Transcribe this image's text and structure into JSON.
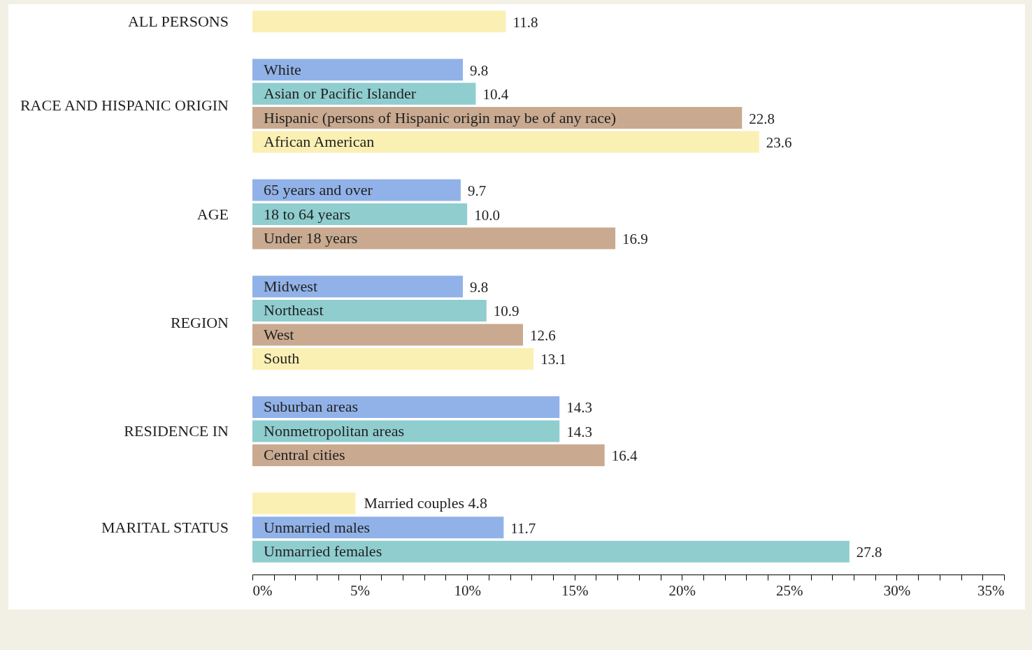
{
  "chart_data": {
    "type": "bar",
    "orientation": "horizontal",
    "value_labels": [
      "11.8",
      null,
      "9.8",
      "10.4",
      "22.8",
      "23.6",
      null,
      "9.7",
      "10.0",
      "16.9",
      null,
      "9.8",
      "10.9",
      "12.6",
      "13.1",
      null,
      "14.3",
      "14.3",
      "16.4",
      null,
      "4.8",
      "11.7",
      "27.8"
    ],
    "categories": [
      null,
      null,
      "White",
      "Asian or Pacific Islander",
      "Hispanic (persons of Hispanic origin may be of any race)",
      "African American",
      null,
      "65 years and over",
      "18 to 64 years",
      "Under 18 years",
      null,
      "Midwest",
      "Northeast",
      "West",
      "South",
      null,
      "Suburban areas",
      "Nonmetropolitan areas",
      "Central cities",
      null,
      "Married couples",
      "Unmarried males",
      "Unmarried females"
    ],
    "values": [
      11.8,
      null,
      9.8,
      10.4,
      22.8,
      23.6,
      null,
      9.7,
      10.0,
      16.9,
      null,
      9.8,
      10.9,
      12.6,
      13.1,
      null,
      14.3,
      14.3,
      16.4,
      null,
      4.8,
      11.7,
      27.8
    ],
    "colors": [
      "#fbf0b4",
      null,
      "#91b2e8",
      "#8fcdcf",
      "#c9aa90",
      "#fbf0b4",
      null,
      "#91b2e8",
      "#8fcdcf",
      "#c9aa90",
      null,
      "#91b2e8",
      "#8fcdcf",
      "#c9aa90",
      "#fbf0b4",
      null,
      "#91b2e8",
      "#8fcdcf",
      "#c9aa90",
      null,
      "#fbf0b4",
      "#91b2e8",
      "#8fcdcf"
    ],
    "annotations": [
      "ALL PERSONS",
      "RACE AND HISPANIC ORIGIN",
      "AGE",
      "REGION",
      "RESIDENCE IN",
      "MARITAL STATUS"
    ],
    "xlim": [
      0,
      35
    ],
    "xticks": [
      {
        "value": 0,
        "label": "0%"
      },
      {
        "value": 1,
        "label": null
      },
      {
        "value": 2,
        "label": null
      },
      {
        "value": 3,
        "label": null
      },
      {
        "value": 4,
        "label": null
      },
      {
        "value": 5,
        "label": "5%"
      },
      {
        "value": 6,
        "label": null
      },
      {
        "value": 7,
        "label": null
      },
      {
        "value": 8,
        "label": null
      },
      {
        "value": 9,
        "label": null
      },
      {
        "value": 10,
        "label": "10%"
      },
      {
        "value": 11,
        "label": null
      },
      {
        "value": 12,
        "label": null
      },
      {
        "value": 13,
        "label": null
      },
      {
        "value": 14,
        "label": null
      },
      {
        "value": 15,
        "label": "15%"
      },
      {
        "value": 16,
        "label": null
      },
      {
        "value": 17,
        "label": null
      },
      {
        "value": 18,
        "label": null
      },
      {
        "value": 19,
        "label": null
      },
      {
        "value": 20,
        "label": "20%"
      },
      {
        "value": 21,
        "label": null
      },
      {
        "value": 22,
        "label": null
      },
      {
        "value": 23,
        "label": null
      },
      {
        "value": 24,
        "label": null
      },
      {
        "value": 25,
        "label": "25%"
      },
      {
        "value": 26,
        "label": null
      },
      {
        "value": 27,
        "label": null
      },
      {
        "value": 28,
        "label": null
      },
      {
        "value": 29,
        "label": null
      },
      {
        "value": 30,
        "label": "30%"
      },
      {
        "value": 31,
        "label": null
      },
      {
        "value": 32,
        "label": null
      },
      {
        "value": 33,
        "label": null
      },
      {
        "value": 34,
        "label": null
      },
      {
        "value": 35,
        "label": "35%"
      }
    ]
  }
}
